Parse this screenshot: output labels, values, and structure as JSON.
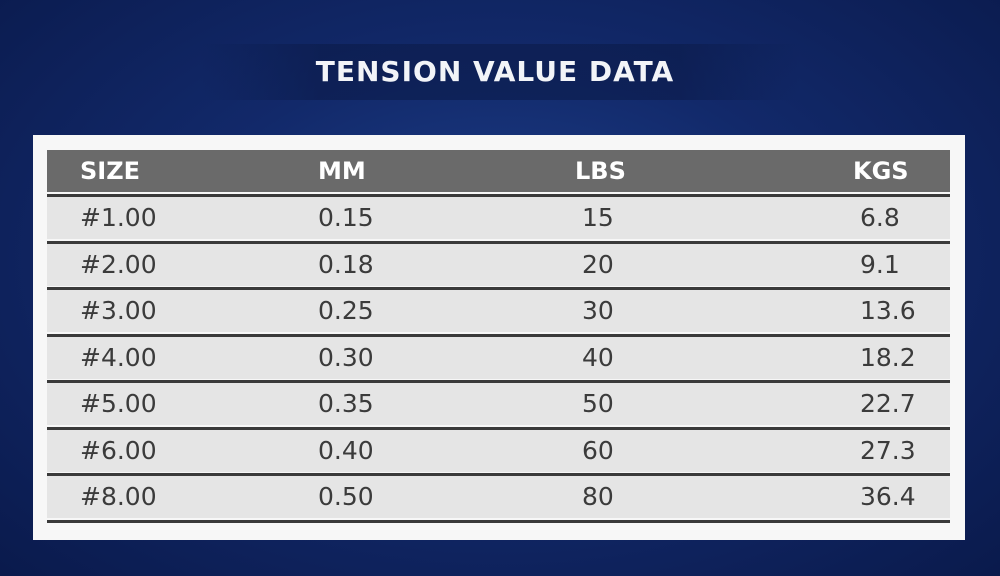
{
  "header": {
    "title": "TENSION VALUE DATA"
  },
  "table": {
    "columns": [
      "SIZE",
      "MM",
      "LBS",
      "KGS"
    ],
    "rows": [
      [
        "#1.00",
        "0.15",
        "15",
        "6.8"
      ],
      [
        "#2.00",
        "0.18",
        "20",
        "9.1"
      ],
      [
        "#3.00",
        "0.25",
        "30",
        "13.6"
      ],
      [
        "#4.00",
        "0.30",
        "40",
        "18.2"
      ],
      [
        "#5.00",
        "0.35",
        "50",
        "22.7"
      ],
      [
        "#6.00",
        "0.40",
        "60",
        "27.3"
      ],
      [
        "#8.00",
        "0.50",
        "80",
        "36.4"
      ]
    ]
  }
}
